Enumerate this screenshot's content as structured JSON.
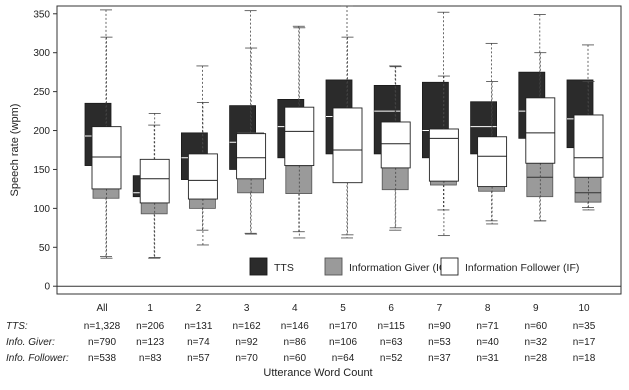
{
  "chart_data": {
    "type": "box",
    "title": "",
    "xlabel": "Utterance Word Count",
    "ylabel": "Speech rate (wpm)",
    "ylim": [
      -10,
      360
    ],
    "yticks": [
      "0",
      "50",
      "100",
      "150",
      "200",
      "250",
      "300",
      "350"
    ],
    "ytick_values": [
      0,
      50,
      100,
      150,
      200,
      250,
      300,
      350
    ],
    "categories": [
      "All",
      "1",
      "2",
      "3",
      "4",
      "5",
      "6",
      "7",
      "8",
      "9",
      "10"
    ],
    "grid": false,
    "legend_position": "bottom-right",
    "colors": {
      "TTS": "#2b2b2b",
      "IG": "#9a9a9a",
      "IF": "#ffffff"
    },
    "series": [
      {
        "name": "TTS",
        "boxes": [
          {
            "q1": 155,
            "median": 193,
            "q3": 235
          },
          {
            "q1": 115,
            "median": 120,
            "q3": 142
          },
          {
            "q1": 137,
            "median": 165,
            "q3": 197
          },
          {
            "q1": 150,
            "median": 185,
            "q3": 232
          },
          {
            "q1": 165,
            "median": 205,
            "q3": 240
          },
          {
            "q1": 170,
            "median": 218,
            "q3": 265
          },
          {
            "q1": 170,
            "median": 225,
            "q3": 258
          },
          {
            "q1": 165,
            "median": 200,
            "q3": 262
          },
          {
            "q1": 170,
            "median": 205,
            "q3": 237
          },
          {
            "q1": 190,
            "median": 225,
            "q3": 275
          },
          {
            "q1": 178,
            "median": 215,
            "q3": 265
          }
        ]
      },
      {
        "name": "Information Giver (IG)",
        "boxes": [
          {
            "whislo": 38,
            "q1": 113,
            "median": 140,
            "q3": 172,
            "whishi": 355
          },
          {
            "whislo": 36,
            "q1": 93,
            "median": 112,
            "q3": 122,
            "whishi": 207
          },
          {
            "whislo": 72,
            "q1": 100,
            "median": 118,
            "q3": 148,
            "whishi": 283
          },
          {
            "whislo": 68,
            "q1": 120,
            "median": 150,
            "q3": 197,
            "whishi": 354
          },
          {
            "whislo": 70,
            "q1": 119,
            "median": 155,
            "q3": 200,
            "whishi": 334
          },
          {
            "whislo": 62,
            "q1": 135,
            "median": 160,
            "q3": 190,
            "whishi": 360
          },
          {
            "whislo": 72,
            "q1": 124,
            "median": 160,
            "q3": 190,
            "whishi": 283
          },
          {
            "whislo": 98,
            "q1": 130,
            "median": 148,
            "q3": 182,
            "whishi": 352
          },
          {
            "whislo": 84,
            "q1": 122,
            "median": 140,
            "q3": 178,
            "whishi": 312
          },
          {
            "whislo": 84,
            "q1": 115,
            "median": 140,
            "q3": 175,
            "whishi": 349
          },
          {
            "whislo": 101,
            "q1": 108,
            "median": 120,
            "q3": 170,
            "whishi": 310
          }
        ]
      },
      {
        "name": "Information Follower (IF)",
        "boxes": [
          {
            "whislo": 36,
            "q1": 125,
            "median": 166,
            "q3": 205,
            "whishi": 320
          },
          {
            "whislo": 37,
            "q1": 107,
            "median": 138,
            "q3": 163,
            "whishi": 222
          },
          {
            "whislo": 53,
            "q1": 112,
            "median": 136,
            "q3": 170,
            "whishi": 236
          },
          {
            "whislo": 67,
            "q1": 138,
            "median": 165,
            "q3": 196,
            "whishi": 306
          },
          {
            "whislo": 62,
            "q1": 155,
            "median": 199,
            "q3": 230,
            "whishi": 332
          },
          {
            "whislo": 66,
            "q1": 133,
            "median": 175,
            "q3": 229,
            "whishi": 320
          },
          {
            "whislo": 75,
            "q1": 152,
            "median": 183,
            "q3": 211,
            "whishi": 282
          },
          {
            "whislo": 65,
            "q1": 135,
            "median": 190,
            "q3": 202,
            "whishi": 270
          },
          {
            "whislo": 80,
            "q1": 128,
            "median": 167,
            "q3": 192,
            "whishi": 263
          },
          {
            "whislo": 84,
            "q1": 158,
            "median": 197,
            "q3": 242,
            "whishi": 300
          },
          {
            "whislo": 98,
            "q1": 140,
            "median": 165,
            "q3": 220,
            "whishi": 263
          }
        ]
      }
    ],
    "legend": [
      {
        "series": "TTS",
        "label": "TTS"
      },
      {
        "series": "IG",
        "label": "Information Giver (IG)"
      },
      {
        "series": "IF",
        "label": "Information Follower (IF)"
      }
    ],
    "counts_table": {
      "rows": [
        {
          "label": "TTS:",
          "values": [
            "n=1,328",
            "n=206",
            "n=131",
            "n=162",
            "n=146",
            "n=170",
            "n=115",
            "n=90",
            "n=71",
            "n=60",
            "n=35"
          ]
        },
        {
          "label": "Info. Giver:",
          "values": [
            "n=790",
            "n=123",
            "n=74",
            "n=92",
            "n=86",
            "n=106",
            "n=63",
            "n=53",
            "n=40",
            "n=32",
            "n=17"
          ]
        },
        {
          "label": "Info. Follower:",
          "values": [
            "n=538",
            "n=83",
            "n=57",
            "n=70",
            "n=60",
            "n=64",
            "n=52",
            "n=37",
            "n=31",
            "n=28",
            "n=18"
          ]
        }
      ]
    }
  }
}
